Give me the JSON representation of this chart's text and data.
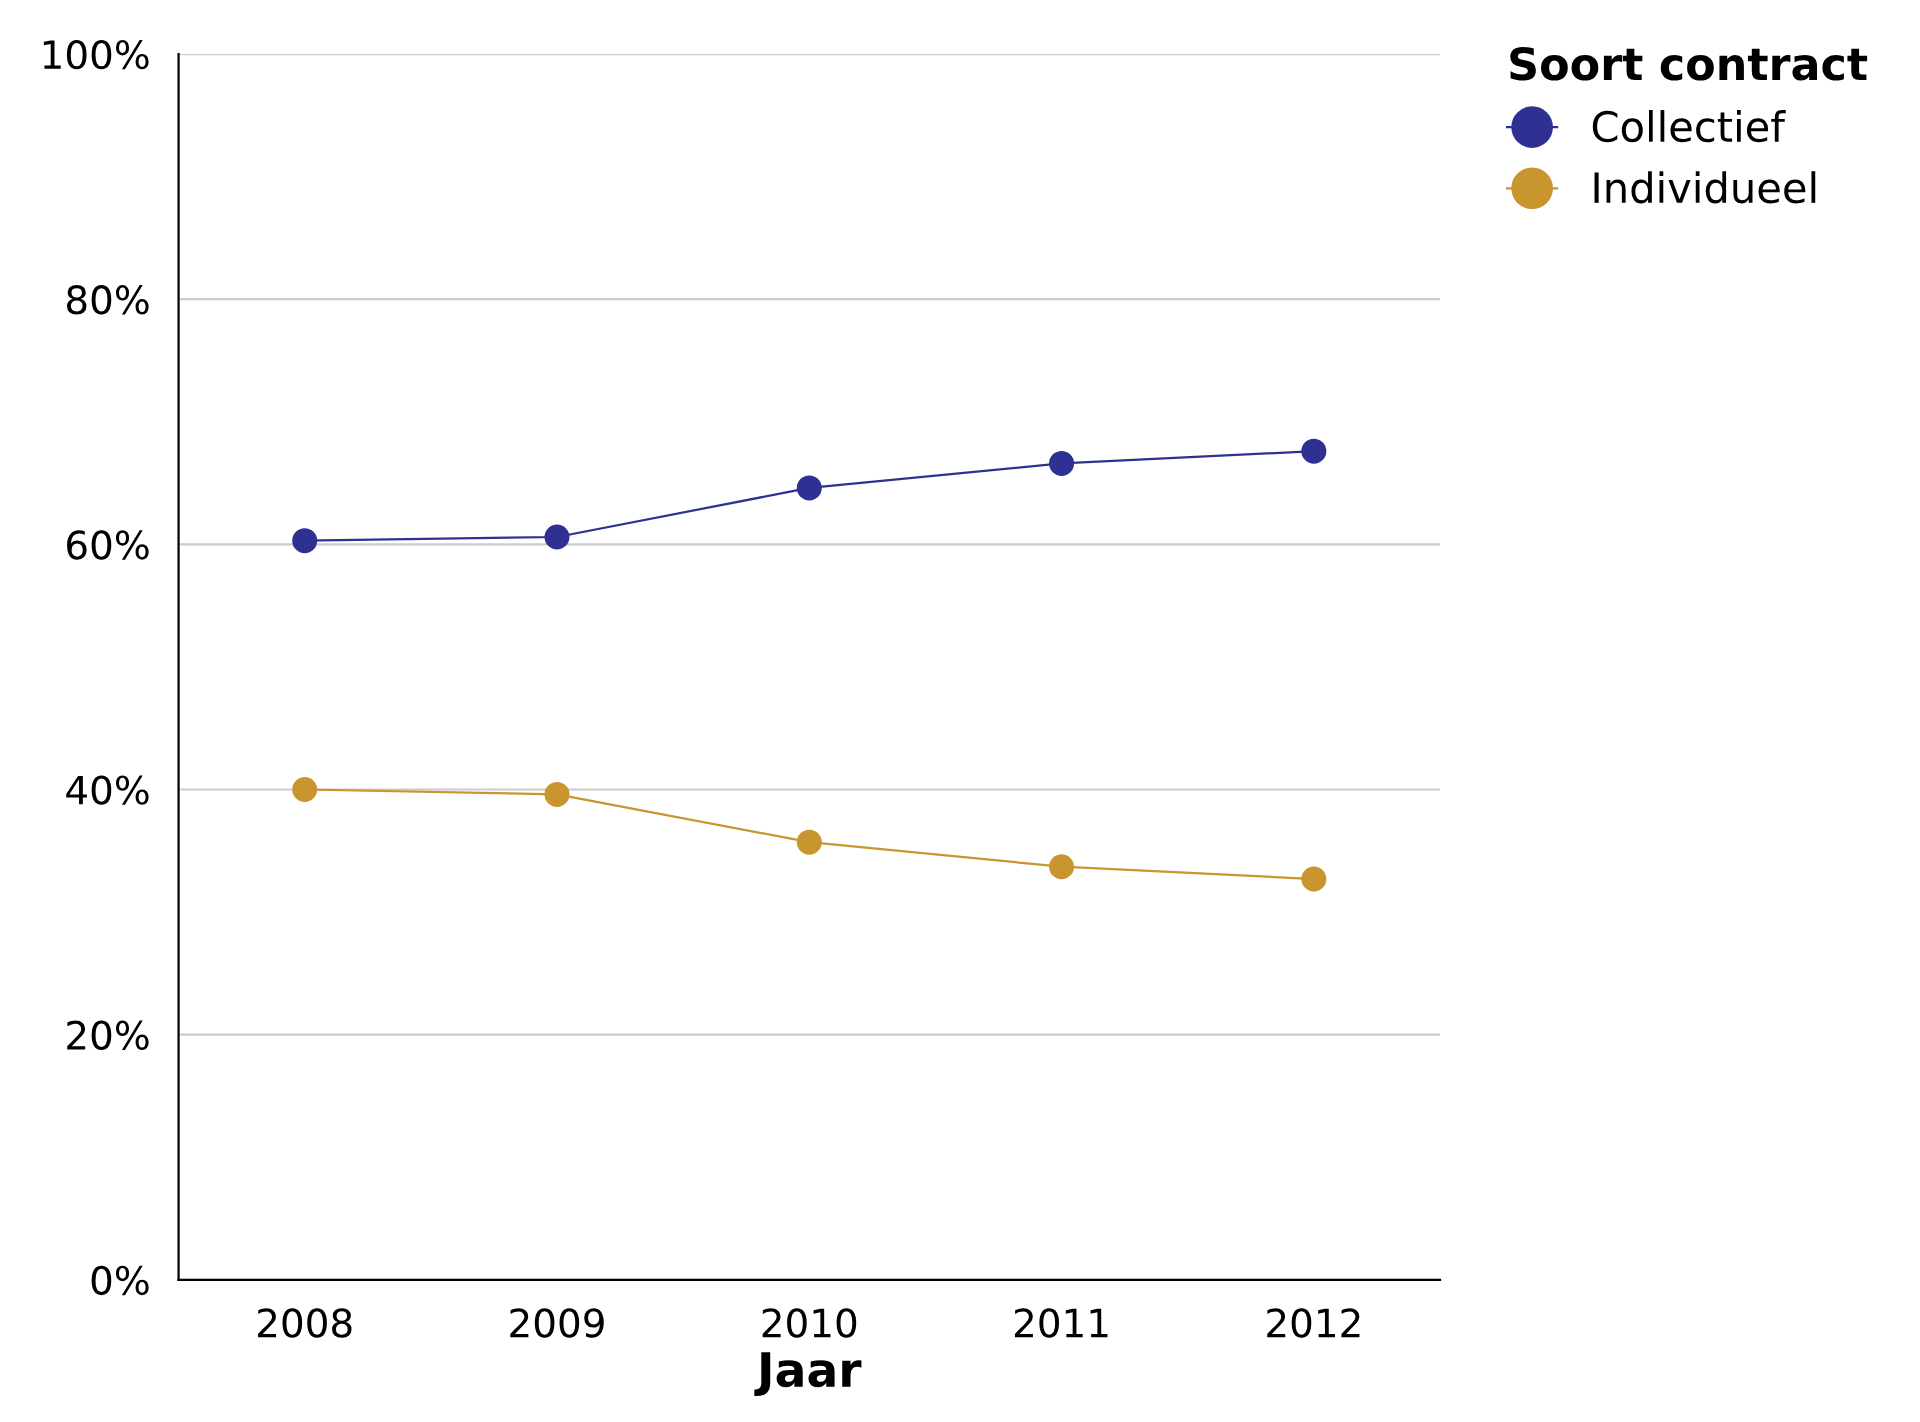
{
  "chart_data": {
    "type": "line",
    "xlabel": "Jaar",
    "legend_title": "Soort contract",
    "categories": [
      "2008",
      "2009",
      "2010",
      "2011",
      "2012"
    ],
    "series": [
      {
        "name": "Collectief",
        "color": "#2e3192",
        "values": [
          60.3,
          60.6,
          64.6,
          66.6,
          67.6
        ]
      },
      {
        "name": "Individueel",
        "color": "#c8952f",
        "values": [
          40.0,
          39.6,
          35.7,
          33.7,
          32.7
        ]
      }
    ],
    "ylim": [
      0,
      100
    ],
    "yticks": [
      {
        "value": 0,
        "label": "0%"
      },
      {
        "value": 20,
        "label": "20%"
      },
      {
        "value": 40,
        "label": "40%"
      },
      {
        "value": 60,
        "label": "60%"
      },
      {
        "value": 80,
        "label": "80%"
      },
      {
        "value": 100,
        "label": "100%"
      }
    ],
    "grid": "y",
    "legend": "top right",
    "marker": "circle",
    "line_style": "solid"
  }
}
